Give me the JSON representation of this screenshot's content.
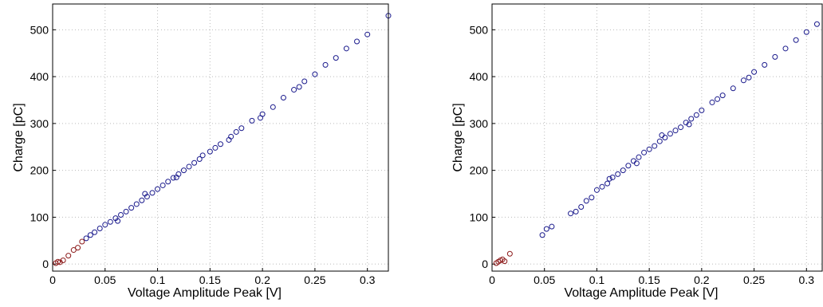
{
  "chart_data": [
    {
      "type": "scatter",
      "xlabel": "Voltage Amplitude Peak [V]",
      "ylabel": "Charge [pC]",
      "xlim": [
        0,
        0.32
      ],
      "ylim": [
        -15,
        555
      ],
      "xticks": [
        0,
        0.05,
        0.1,
        0.15,
        0.2,
        0.25,
        0.3
      ],
      "yticks": [
        0,
        100,
        200,
        300,
        400,
        500
      ],
      "grid": true,
      "series": [
        {
          "color": "#1a1a8c",
          "x": [
            0.032,
            0.036,
            0.04,
            0.045,
            0.05,
            0.055,
            0.06,
            0.065,
            0.07,
            0.075,
            0.08,
            0.085,
            0.09,
            0.095,
            0.1,
            0.105,
            0.11,
            0.115,
            0.12,
            0.125,
            0.13,
            0.135,
            0.14,
            0.15,
            0.155,
            0.16,
            0.17,
            0.175,
            0.18,
            0.19,
            0.2,
            0.21,
            0.22,
            0.23,
            0.24,
            0.25,
            0.26,
            0.27,
            0.28,
            0.29,
            0.3,
            0.32,
            0.062,
            0.088,
            0.118,
            0.143,
            0.168,
            0.198,
            0.235
          ],
          "y": [
            55,
            62,
            68,
            76,
            84,
            90,
            98,
            105,
            112,
            120,
            128,
            136,
            144,
            152,
            160,
            168,
            176,
            184,
            192,
            200,
            208,
            216,
            224,
            240,
            248,
            256,
            272,
            282,
            290,
            306,
            320,
            335,
            355,
            372,
            390,
            405,
            425,
            440,
            460,
            475,
            490,
            530,
            92,
            150,
            185,
            232,
            265,
            312,
            378
          ]
        },
        {
          "color": "#8c1a1a",
          "x": [
            0.003,
            0.005,
            0.007,
            0.01,
            0.015,
            0.02,
            0.024,
            0.028
          ],
          "y": [
            2,
            5,
            4,
            8,
            18,
            30,
            35,
            48
          ]
        }
      ]
    },
    {
      "type": "scatter",
      "xlabel": "Voltage Amplitude Peak [V]",
      "ylabel": "Charge [pC]",
      "xlim": [
        0,
        0.315
      ],
      "ylim": [
        -15,
        555
      ],
      "xticks": [
        0,
        0.05,
        0.1,
        0.15,
        0.2,
        0.25,
        0.3
      ],
      "yticks": [
        0,
        100,
        200,
        300,
        400,
        500
      ],
      "grid": true,
      "series": [
        {
          "color": "#1a1a8c",
          "x": [
            0.048,
            0.052,
            0.057,
            0.075,
            0.08,
            0.085,
            0.09,
            0.095,
            0.1,
            0.105,
            0.11,
            0.115,
            0.12,
            0.125,
            0.13,
            0.135,
            0.14,
            0.145,
            0.15,
            0.155,
            0.16,
            0.165,
            0.17,
            0.175,
            0.18,
            0.185,
            0.19,
            0.195,
            0.2,
            0.21,
            0.22,
            0.23,
            0.24,
            0.25,
            0.26,
            0.27,
            0.28,
            0.29,
            0.3,
            0.31,
            0.112,
            0.138,
            0.162,
            0.188,
            0.215,
            0.245
          ],
          "y": [
            62,
            75,
            80,
            108,
            112,
            122,
            135,
            142,
            158,
            165,
            172,
            185,
            192,
            200,
            210,
            220,
            228,
            238,
            245,
            252,
            262,
            270,
            278,
            285,
            292,
            302,
            310,
            318,
            328,
            345,
            360,
            375,
            392,
            410,
            425,
            442,
            460,
            478,
            495,
            512,
            182,
            215,
            275,
            298,
            352,
            398
          ]
        },
        {
          "color": "#8c1a1a",
          "x": [
            0.004,
            0.006,
            0.008,
            0.01,
            0.012,
            0.017
          ],
          "y": [
            2,
            5,
            8,
            10,
            6,
            22
          ]
        }
      ]
    }
  ]
}
